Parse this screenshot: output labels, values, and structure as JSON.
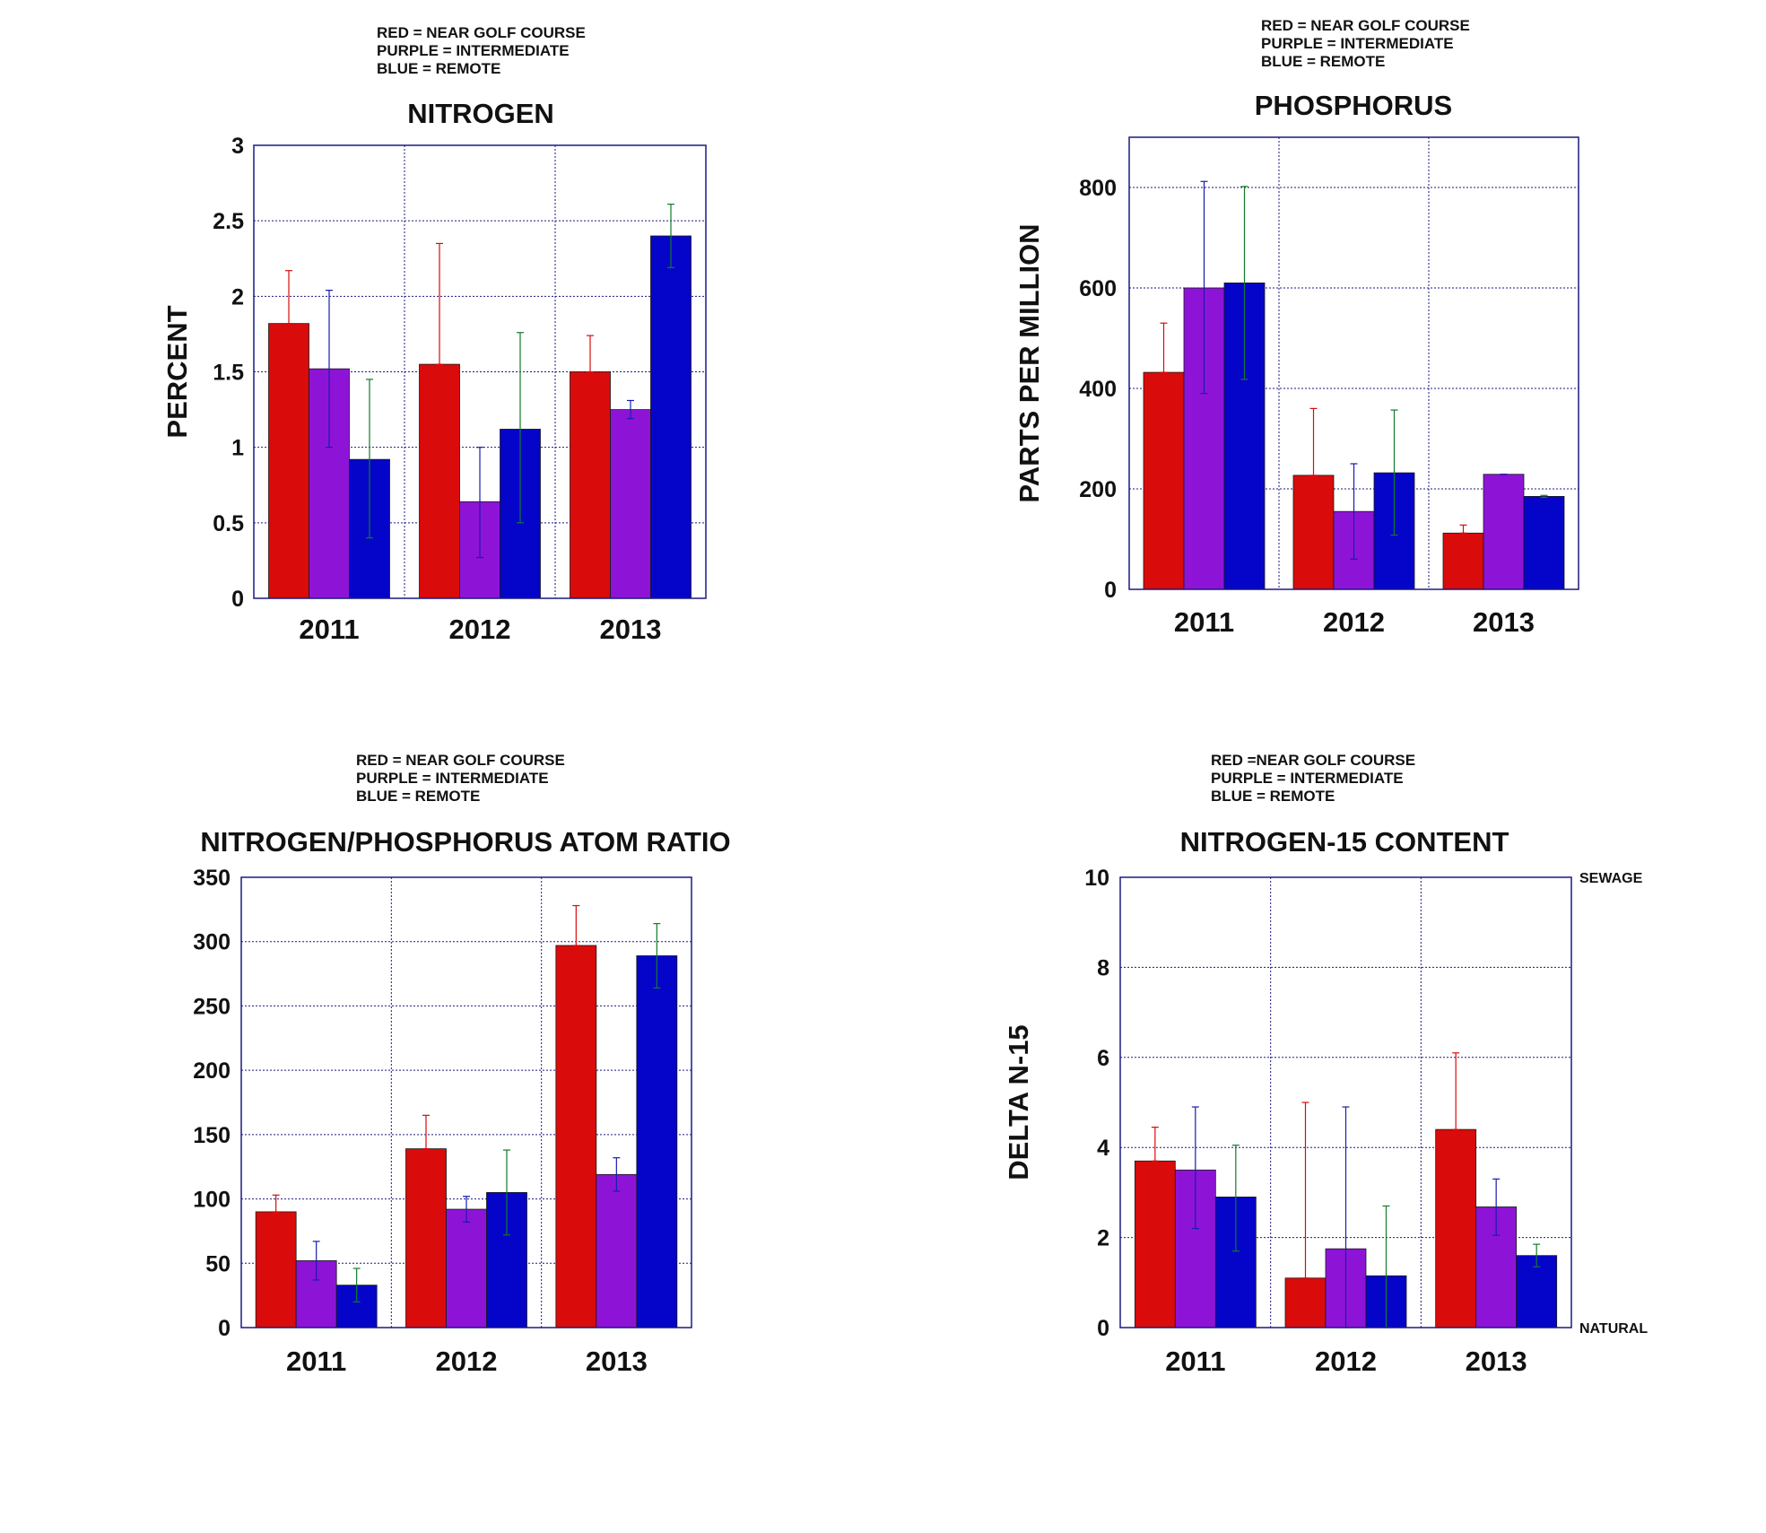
{
  "colors": {
    "red": "#d90b0b",
    "purple": "#8d14d7",
    "blue": "#0505c9",
    "frame": "#1a1a80",
    "grid": "#1a1a80"
  },
  "chart_data": [
    {
      "type": "bar",
      "title": "NITROGEN",
      "legend": [
        "RED = NEAR GOLF COURSE",
        "PURPLE = INTERMEDIATE",
        "BLUE = REMOTE"
      ],
      "ylabel": "PERCENT",
      "ylim": [
        0,
        3
      ],
      "yticks": [
        "0",
        "0.5",
        "1",
        "1.5",
        "2",
        "2.5",
        "3"
      ],
      "ytick_values": [
        0,
        0.5,
        1,
        1.5,
        2,
        2.5,
        3
      ],
      "categories": [
        "2011",
        "2012",
        "2013"
      ],
      "series": [
        {
          "color": "red",
          "values": [
            1.82,
            1.55,
            1.5
          ],
          "err_low": [
            1.82,
            1.55,
            1.5
          ],
          "err_high": [
            2.17,
            2.35,
            1.74
          ]
        },
        {
          "color": "purple",
          "values": [
            1.52,
            0.64,
            1.25
          ],
          "err_low": [
            1.0,
            0.27,
            1.19
          ],
          "err_high": [
            2.04,
            1.0,
            1.31
          ]
        },
        {
          "color": "blue",
          "values": [
            0.92,
            1.12,
            2.4
          ],
          "err_low": [
            0.4,
            0.5,
            2.19
          ],
          "err_high": [
            1.45,
            1.76,
            2.61
          ]
        }
      ],
      "grid": true,
      "annotations": {
        "top": "",
        "bottom": ""
      }
    },
    {
      "type": "bar",
      "title": "PHOSPHORUS",
      "legend": [
        "RED = NEAR GOLF COURSE",
        "PURPLE = INTERMEDIATE",
        "BLUE = REMOTE"
      ],
      "ylabel": "PARTS PER MILLION",
      "ylim": [
        0,
        900
      ],
      "yticks": [
        "0",
        "200",
        "400",
        "600",
        "800"
      ],
      "ytick_values": [
        0,
        200,
        400,
        600,
        800
      ],
      "categories": [
        "2011",
        "2012",
        "2013"
      ],
      "series": [
        {
          "color": "red",
          "values": [
            432,
            227,
            112
          ],
          "err_low": [
            432,
            227,
            112
          ],
          "err_high": [
            530,
            360,
            128
          ]
        },
        {
          "color": "purple",
          "values": [
            600,
            155,
            229
          ],
          "err_low": [
            390,
            60,
            229
          ],
          "err_high": [
            812,
            250,
            229
          ]
        },
        {
          "color": "blue",
          "values": [
            610,
            232,
            185
          ],
          "err_low": [
            418,
            108,
            183
          ],
          "err_high": [
            802,
            357,
            187
          ]
        }
      ],
      "grid": true,
      "annotations": {
        "top": "",
        "bottom": ""
      }
    },
    {
      "type": "bar",
      "title": "NITROGEN/PHOSPHORUS ATOM RATIO",
      "legend": [
        "RED = NEAR GOLF COURSE",
        "PURPLE = INTERMEDIATE",
        "BLUE = REMOTE"
      ],
      "ylabel": "",
      "ylim": [
        0,
        350
      ],
      "yticks": [
        "0",
        "50",
        "100",
        "150",
        "200",
        "250",
        "300",
        "350"
      ],
      "ytick_values": [
        0,
        50,
        100,
        150,
        200,
        250,
        300,
        350
      ],
      "categories": [
        "2011",
        "2012",
        "2013"
      ],
      "series": [
        {
          "color": "red",
          "values": [
            90,
            139,
            297
          ],
          "err_low": [
            90,
            139,
            297
          ],
          "err_high": [
            103,
            165,
            328
          ]
        },
        {
          "color": "purple",
          "values": [
            52,
            92,
            119
          ],
          "err_low": [
            37,
            82,
            106
          ],
          "err_high": [
            67,
            102,
            132
          ]
        },
        {
          "color": "blue",
          "values": [
            33,
            105,
            289
          ],
          "err_low": [
            20,
            72,
            264
          ],
          "err_high": [
            46,
            138,
            314
          ]
        }
      ],
      "grid": true,
      "annotations": {
        "top": "",
        "bottom": ""
      }
    },
    {
      "type": "bar",
      "title": "NITROGEN-15 CONTENT",
      "legend": [
        "RED =NEAR GOLF COURSE",
        "PURPLE = INTERMEDIATE",
        "BLUE = REMOTE"
      ],
      "ylabel": "DELTA N-15",
      "ylim": [
        0,
        10
      ],
      "yticks": [
        "0",
        "2",
        "4",
        "6",
        "8",
        "10"
      ],
      "ytick_values": [
        0,
        2,
        4,
        6,
        8,
        10
      ],
      "categories": [
        "2011",
        "2012",
        "2013"
      ],
      "series": [
        {
          "color": "red",
          "values": [
            3.7,
            1.1,
            4.4
          ],
          "err_low": [
            3.7,
            1.1,
            4.4
          ],
          "err_high": [
            4.45,
            5.0,
            6.1
          ]
        },
        {
          "color": "purple",
          "values": [
            3.5,
            1.75,
            2.68
          ],
          "err_low": [
            2.2,
            0,
            2.05
          ],
          "err_high": [
            4.9,
            4.9,
            3.3
          ]
        },
        {
          "color": "blue",
          "values": [
            2.9,
            1.15,
            1.6
          ],
          "err_low": [
            1.7,
            0,
            1.35
          ],
          "err_high": [
            4.05,
            2.7,
            1.85
          ]
        }
      ],
      "grid": true,
      "annotations": {
        "top": "SEWAGE",
        "bottom": "NATURAL"
      }
    }
  ]
}
